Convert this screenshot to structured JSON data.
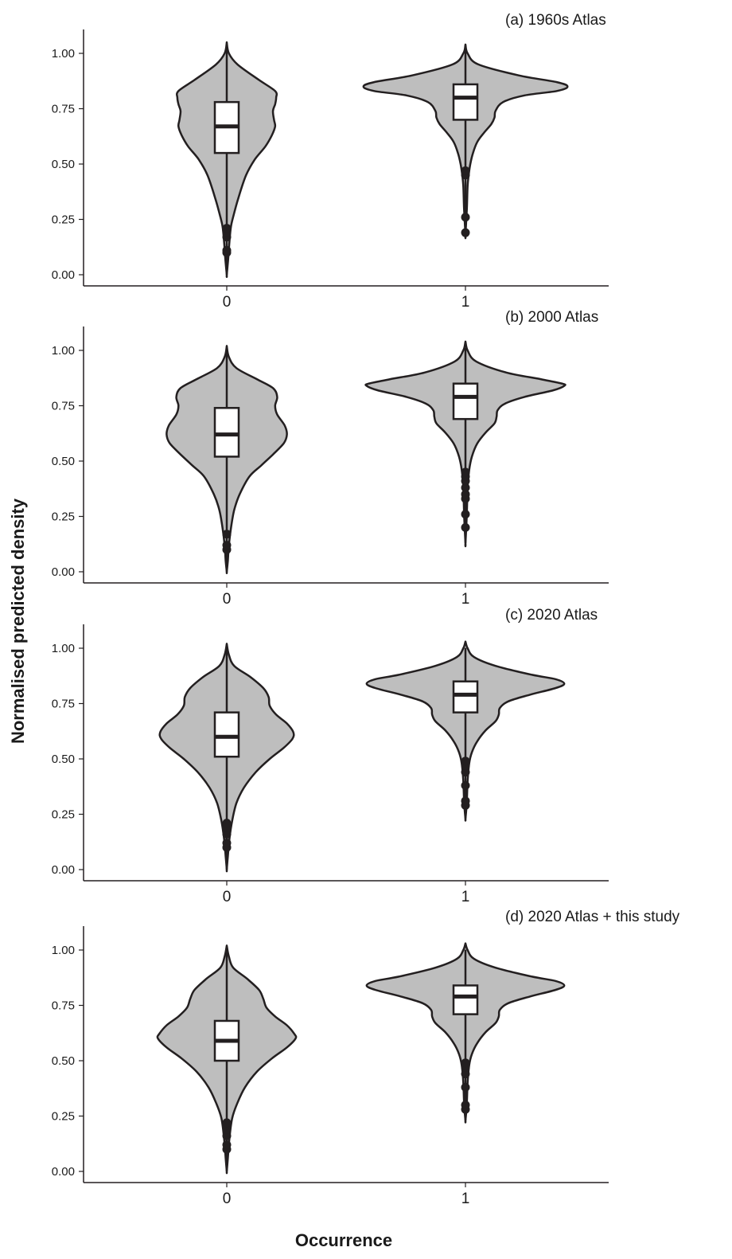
{
  "figure": {
    "ylabel": "Normalised predicted density",
    "xlabel": "Occurrence"
  },
  "colors": {
    "violin_fill": "#bebebe",
    "stroke": "#231f20",
    "box_fill": "#ffffff",
    "background": "#ffffff"
  },
  "chart_data": [
    {
      "type": "violin",
      "title": "(a) 1960s Atlas",
      "categories": [
        "0",
        "1"
      ],
      "ylim": [
        0,
        1.0
      ],
      "yticks": [
        "0.00",
        "0.25",
        "0.50",
        "0.75",
        "1.00"
      ],
      "groups": [
        {
          "category": "0",
          "violin_min": 0.0,
          "violin_max": 1.05,
          "density_profile": [
            [
              1.05,
              0.0
            ],
            [
              1.0,
              0.02
            ],
            [
              0.95,
              0.1
            ],
            [
              0.88,
              0.3
            ],
            [
              0.83,
              0.45
            ],
            [
              0.8,
              0.46
            ],
            [
              0.77,
              0.45
            ],
            [
              0.74,
              0.43
            ],
            [
              0.7,
              0.44
            ],
            [
              0.67,
              0.45
            ],
            [
              0.63,
              0.42
            ],
            [
              0.58,
              0.36
            ],
            [
              0.52,
              0.26
            ],
            [
              0.45,
              0.18
            ],
            [
              0.35,
              0.11
            ],
            [
              0.28,
              0.07
            ],
            [
              0.22,
              0.04
            ],
            [
              0.15,
              0.025
            ],
            [
              0.08,
              0.015
            ],
            [
              0.0,
              0.0
            ]
          ],
          "whisker_low": 0.0,
          "q1": 0.55,
          "median": 0.67,
          "q3": 0.78,
          "whisker_high": 0.95,
          "outliers": [
            0.1,
            0.11,
            0.17,
            0.19,
            0.21
          ]
        },
        {
          "category": "1",
          "violin_min": 0.18,
          "violin_max": 1.04,
          "density_profile": [
            [
              1.04,
              0.0
            ],
            [
              1.0,
              0.02
            ],
            [
              0.95,
              0.12
            ],
            [
              0.9,
              0.5
            ],
            [
              0.87,
              0.85
            ],
            [
              0.85,
              0.95
            ],
            [
              0.83,
              0.85
            ],
            [
              0.81,
              0.55
            ],
            [
              0.78,
              0.35
            ],
            [
              0.74,
              0.28
            ],
            [
              0.71,
              0.27
            ],
            [
              0.68,
              0.24
            ],
            [
              0.64,
              0.17
            ],
            [
              0.6,
              0.11
            ],
            [
              0.55,
              0.07
            ],
            [
              0.5,
              0.045
            ],
            [
              0.45,
              0.03
            ],
            [
              0.4,
              0.02
            ],
            [
              0.3,
              0.013
            ],
            [
              0.18,
              0.0
            ]
          ],
          "whisker_low": 0.47,
          "q1": 0.7,
          "median": 0.8,
          "q3": 0.86,
          "whisker_high": 0.96,
          "outliers": [
            0.19,
            0.26,
            0.45,
            0.46,
            0.47
          ]
        }
      ]
    },
    {
      "type": "violin",
      "title": "(b) 2000 Atlas",
      "categories": [
        "0",
        "1"
      ],
      "ylim": [
        0,
        1.0
      ],
      "yticks": [
        "0.00",
        "0.25",
        "0.50",
        "0.75",
        "1.00"
      ],
      "groups": [
        {
          "category": "0",
          "violin_min": 0.0,
          "violin_max": 1.02,
          "density_profile": [
            [
              1.02,
              0.0
            ],
            [
              0.97,
              0.02
            ],
            [
              0.92,
              0.09
            ],
            [
              0.87,
              0.28
            ],
            [
              0.83,
              0.43
            ],
            [
              0.79,
              0.47
            ],
            [
              0.75,
              0.45
            ],
            [
              0.71,
              0.47
            ],
            [
              0.66,
              0.54
            ],
            [
              0.62,
              0.56
            ],
            [
              0.58,
              0.53
            ],
            [
              0.53,
              0.43
            ],
            [
              0.48,
              0.32
            ],
            [
              0.43,
              0.21
            ],
            [
              0.35,
              0.12
            ],
            [
              0.28,
              0.07
            ],
            [
              0.2,
              0.04
            ],
            [
              0.12,
              0.02
            ],
            [
              0.05,
              0.01
            ],
            [
              0.0,
              0.0
            ]
          ],
          "whisker_low": 0.0,
          "q1": 0.52,
          "median": 0.62,
          "q3": 0.74,
          "whisker_high": 0.91,
          "outliers": [
            0.1,
            0.12,
            0.17
          ]
        },
        {
          "category": "1",
          "violin_min": 0.13,
          "violin_max": 1.04,
          "density_profile": [
            [
              1.04,
              0.0
            ],
            [
              1.0,
              0.02
            ],
            [
              0.95,
              0.1
            ],
            [
              0.9,
              0.38
            ],
            [
              0.87,
              0.7
            ],
            [
              0.85,
              0.9
            ],
            [
              0.84,
              0.92
            ],
            [
              0.82,
              0.82
            ],
            [
              0.79,
              0.55
            ],
            [
              0.76,
              0.37
            ],
            [
              0.73,
              0.3
            ],
            [
              0.7,
              0.29
            ],
            [
              0.67,
              0.27
            ],
            [
              0.63,
              0.19
            ],
            [
              0.58,
              0.11
            ],
            [
              0.52,
              0.06
            ],
            [
              0.46,
              0.035
            ],
            [
              0.38,
              0.02
            ],
            [
              0.25,
              0.012
            ],
            [
              0.13,
              0.0
            ]
          ],
          "whisker_low": 0.45,
          "q1": 0.69,
          "median": 0.79,
          "q3": 0.85,
          "whisker_high": 0.95,
          "outliers": [
            0.2,
            0.26,
            0.33,
            0.35,
            0.38,
            0.41,
            0.43,
            0.45
          ]
        }
      ]
    },
    {
      "type": "violin",
      "title": "(c) 2020 Atlas",
      "categories": [
        "0",
        "1"
      ],
      "ylim": [
        0,
        1.0
      ],
      "yticks": [
        "0.00",
        "0.25",
        "0.50",
        "0.75",
        "1.00"
      ],
      "groups": [
        {
          "category": "0",
          "violin_min": 0.0,
          "violin_max": 1.02,
          "density_profile": [
            [
              1.02,
              0.0
            ],
            [
              0.97,
              0.02
            ],
            [
              0.92,
              0.07
            ],
            [
              0.87,
              0.22
            ],
            [
              0.82,
              0.34
            ],
            [
              0.78,
              0.39
            ],
            [
              0.74,
              0.4
            ],
            [
              0.7,
              0.46
            ],
            [
              0.66,
              0.56
            ],
            [
              0.62,
              0.62
            ],
            [
              0.59,
              0.61
            ],
            [
              0.55,
              0.53
            ],
            [
              0.5,
              0.4
            ],
            [
              0.44,
              0.27
            ],
            [
              0.37,
              0.16
            ],
            [
              0.3,
              0.09
            ],
            [
              0.22,
              0.05
            ],
            [
              0.14,
              0.025
            ],
            [
              0.06,
              0.01
            ],
            [
              0.0,
              0.0
            ]
          ],
          "whisker_low": 0.0,
          "q1": 0.51,
          "median": 0.6,
          "q3": 0.71,
          "whisker_high": 0.9,
          "outliers": [
            0.1,
            0.12,
            0.16,
            0.19,
            0.21
          ]
        },
        {
          "category": "1",
          "violin_min": 0.23,
          "violin_max": 1.03,
          "density_profile": [
            [
              1.03,
              0.0
            ],
            [
              1.0,
              0.02
            ],
            [
              0.96,
              0.08
            ],
            [
              0.92,
              0.28
            ],
            [
              0.88,
              0.62
            ],
            [
              0.86,
              0.84
            ],
            [
              0.84,
              0.92
            ],
            [
              0.82,
              0.84
            ],
            [
              0.79,
              0.6
            ],
            [
              0.76,
              0.4
            ],
            [
              0.73,
              0.32
            ],
            [
              0.7,
              0.31
            ],
            [
              0.67,
              0.28
            ],
            [
              0.63,
              0.19
            ],
            [
              0.58,
              0.11
            ],
            [
              0.53,
              0.06
            ],
            [
              0.48,
              0.035
            ],
            [
              0.4,
              0.02
            ],
            [
              0.3,
              0.012
            ],
            [
              0.23,
              0.0
            ]
          ],
          "whisker_low": 0.48,
          "q1": 0.71,
          "median": 0.79,
          "q3": 0.85,
          "whisker_high": 0.96,
          "outliers": [
            0.29,
            0.31,
            0.38,
            0.44,
            0.47,
            0.49
          ]
        }
      ]
    },
    {
      "type": "violin",
      "title": "(d) 2020 Atlas + this study",
      "categories": [
        "0",
        "1"
      ],
      "ylim": [
        0,
        1.0
      ],
      "yticks": [
        "0.00",
        "0.25",
        "0.50",
        "0.75",
        "1.00"
      ],
      "groups": [
        {
          "category": "0",
          "violin_min": 0.0,
          "violin_max": 1.02,
          "density_profile": [
            [
              1.02,
              0.0
            ],
            [
              0.97,
              0.02
            ],
            [
              0.92,
              0.06
            ],
            [
              0.87,
              0.19
            ],
            [
              0.82,
              0.3
            ],
            [
              0.78,
              0.34
            ],
            [
              0.74,
              0.37
            ],
            [
              0.7,
              0.45
            ],
            [
              0.66,
              0.56
            ],
            [
              0.62,
              0.63
            ],
            [
              0.6,
              0.64
            ],
            [
              0.56,
              0.56
            ],
            [
              0.51,
              0.42
            ],
            [
              0.45,
              0.28
            ],
            [
              0.38,
              0.17
            ],
            [
              0.31,
              0.1
            ],
            [
              0.24,
              0.05
            ],
            [
              0.15,
              0.025
            ],
            [
              0.06,
              0.01
            ],
            [
              0.0,
              0.0
            ]
          ],
          "whisker_low": 0.0,
          "q1": 0.5,
          "median": 0.59,
          "q3": 0.68,
          "whisker_high": 0.9,
          "outliers": [
            0.1,
            0.12,
            0.16,
            0.19,
            0.21,
            0.22
          ]
        },
        {
          "category": "1",
          "violin_min": 0.23,
          "violin_max": 1.03,
          "density_profile": [
            [
              1.03,
              0.0
            ],
            [
              1.0,
              0.02
            ],
            [
              0.96,
              0.08
            ],
            [
              0.92,
              0.28
            ],
            [
              0.88,
              0.62
            ],
            [
              0.86,
              0.84
            ],
            [
              0.84,
              0.92
            ],
            [
              0.82,
              0.84
            ],
            [
              0.79,
              0.6
            ],
            [
              0.76,
              0.4
            ],
            [
              0.73,
              0.32
            ],
            [
              0.7,
              0.31
            ],
            [
              0.67,
              0.28
            ],
            [
              0.63,
              0.19
            ],
            [
              0.58,
              0.11
            ],
            [
              0.53,
              0.06
            ],
            [
              0.48,
              0.035
            ],
            [
              0.4,
              0.02
            ],
            [
              0.3,
              0.012
            ],
            [
              0.23,
              0.0
            ]
          ],
          "whisker_low": 0.49,
          "q1": 0.71,
          "median": 0.79,
          "q3": 0.84,
          "whisker_high": 0.95,
          "outliers": [
            0.28,
            0.3,
            0.38,
            0.44,
            0.47,
            0.49
          ]
        }
      ]
    }
  ]
}
